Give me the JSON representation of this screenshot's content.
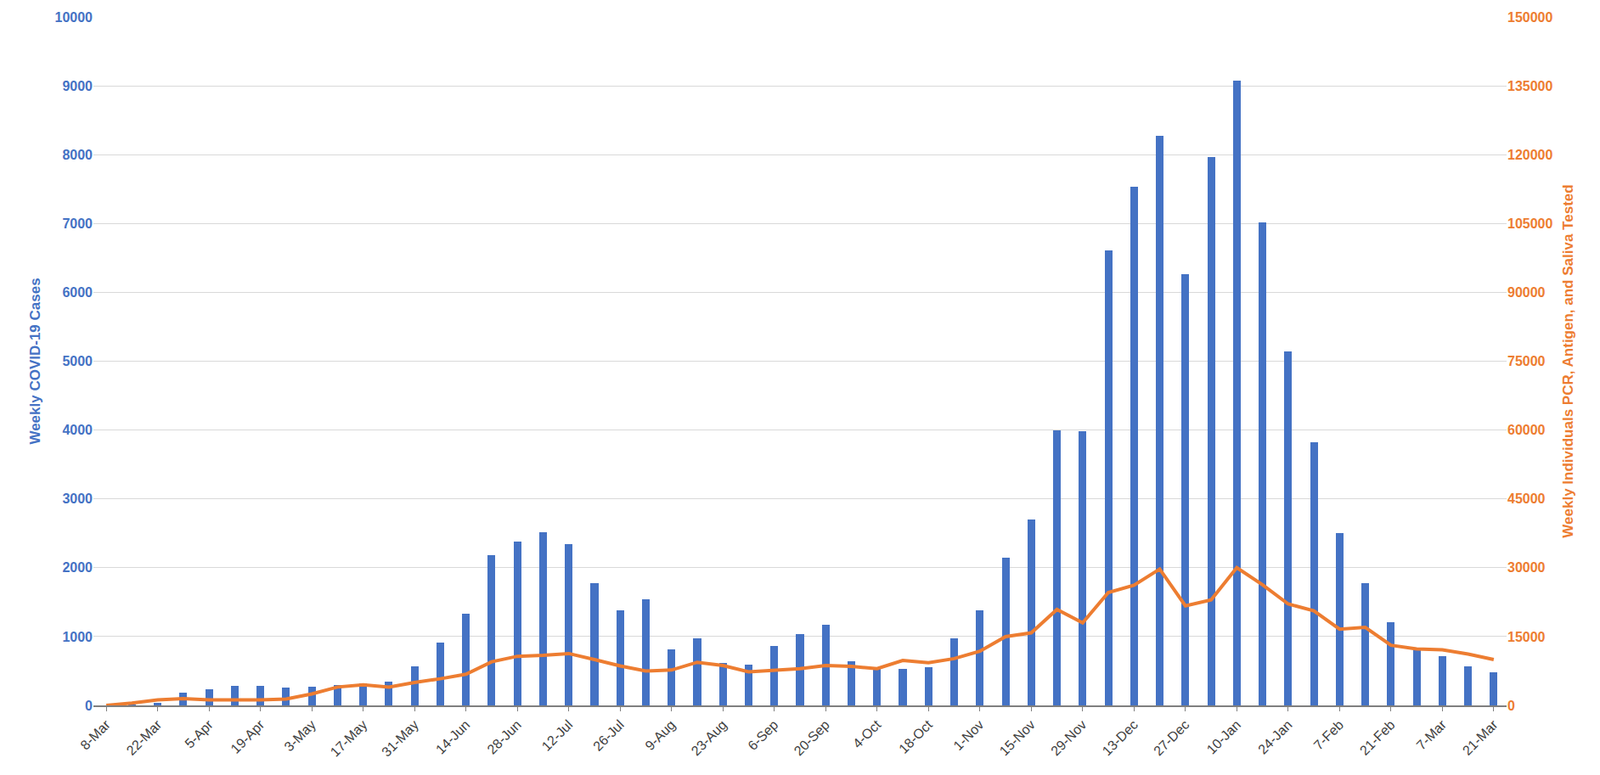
{
  "chart_data": {
    "type": "bar",
    "categories": [
      "8-Mar",
      null,
      "22-Mar",
      null,
      "5-Apr",
      null,
      "19-Apr",
      null,
      "3-May",
      null,
      "17-May",
      null,
      "31-May",
      null,
      "14-Jun",
      null,
      "28-Jun",
      null,
      "12-Jul",
      null,
      "26-Jul",
      null,
      "9-Aug",
      null,
      "23-Aug",
      null,
      "6-Sep",
      null,
      "20-Sep",
      null,
      "4-Oct",
      null,
      "18-Oct",
      null,
      "1-Nov",
      null,
      "15-Nov",
      null,
      "29-Nov",
      null,
      "13-Dec",
      null,
      "27-Dec",
      null,
      "10-Jan",
      null,
      "24-Jan",
      null,
      "7-Feb",
      null,
      "21-Feb",
      null,
      "7-Mar",
      null,
      "21-Mar"
    ],
    "y_label": "Weekly COVID-19 Cases",
    "y2_label": "Weekly Individuals PCR, Antigen, and Saliva Tested",
    "ylim": [
      0,
      10000
    ],
    "yticks": [
      0,
      1000,
      2000,
      3000,
      4000,
      5000,
      6000,
      7000,
      8000,
      9000,
      10000
    ],
    "y2lim": [
      0,
      150000
    ],
    "y2ticks": [
      0,
      15000,
      30000,
      45000,
      60000,
      75000,
      90000,
      105000,
      120000,
      135000,
      150000
    ],
    "grid": true,
    "series": [
      {
        "type": "bar",
        "color": "#4472c4",
        "axis": "y",
        "values": [
          0,
          10,
          40,
          180,
          230,
          280,
          280,
          260,
          270,
          290,
          320,
          340,
          570,
          910,
          1330,
          2180,
          2380,
          2510,
          2340,
          1770,
          1380,
          1540,
          810,
          970,
          620,
          590,
          860,
          1030,
          1170,
          640,
          560,
          530,
          560,
          970,
          1380,
          2150,
          2700,
          4000,
          3980,
          6610,
          7540,
          8270,
          6270,
          7960,
          9080,
          7010,
          5140,
          3820,
          2500,
          1780,
          1210,
          800,
          710,
          570,
          480
        ]
      },
      {
        "type": "line",
        "color": "#ed7d31",
        "axis": "y2",
        "values": [
          0,
          500,
          1200,
          1500,
          1200,
          1200,
          1200,
          1400,
          2500,
          4000,
          4500,
          4000,
          5000,
          5800,
          6800,
          9500,
          10700,
          10900,
          11300,
          10000,
          8600,
          7500,
          7700,
          9400,
          8700,
          7300,
          7700,
          8000,
          8700,
          8500,
          8000,
          9800,
          9300,
          10200,
          11800,
          15000,
          15800,
          20900,
          18000,
          24600,
          26200,
          29700,
          21700,
          23000,
          30000,
          26300,
          22100,
          20600,
          16600,
          17000,
          13100,
          12300,
          12100,
          11200,
          10000
        ]
      }
    ]
  }
}
